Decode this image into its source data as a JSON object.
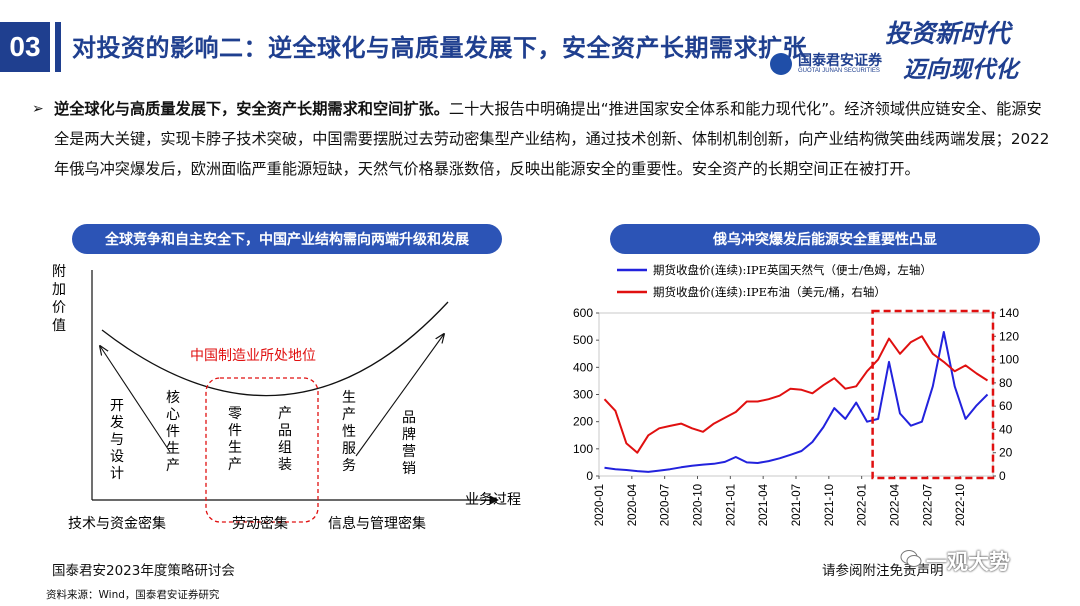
{
  "header": {
    "section_number": "03",
    "title": "对投资的影响二：逆全球化与高质量发展下，安全资产长期需求扩张"
  },
  "brand": {
    "logo_cn": "国泰君安证券",
    "logo_en": "GUOTAI JUNAN SECURITIES",
    "slogan_line1": "投资新时代",
    "slogan_line2": "迈向现代化"
  },
  "bullet": {
    "lead": "逆全球化与高质量发展下，安全资产长期需求和空间扩张。",
    "body": "二十大报告中明确提出“推进国家安全体系和能力现代化”。经济领域供应链安全、能源安全是两大关键，实现卡脖子技术突破，中国需要摆脱过去劳动密集型产业结构，通过技术创新、体制机制创新，向产业结构微笑曲线两端发展；2022年俄乌冲突爆发后，欧洲面临严重能源短缺，天然气价格暴涨数倍，反映出能源安全的重要性。安全资产的长期空间正在被打开。"
  },
  "smile_panel": {
    "pill_title": "全球竞争和自主安全下，中国产业结构需向两端升级和发展",
    "y_axis_label": "附加价值",
    "x_axis_label": "业务过程",
    "curve_label": "中国制造业所处地位",
    "stages": [
      "开发与设计",
      "核心件生产",
      "零件生产",
      "产品组装",
      "生产性服务",
      "品牌营销"
    ],
    "categories": [
      "技术与资金密集",
      "劳动密集",
      "信息与管理密集"
    ]
  },
  "chart_panel": {
    "pill_title": "俄乌冲突爆发后能源安全重要性凸显"
  },
  "chart_data": {
    "type": "line",
    "title": "",
    "x_ticks": [
      "2020-01",
      "2020-04",
      "2020-07",
      "2020-10",
      "2021-01",
      "2021-04",
      "2021-07",
      "2021-10",
      "2022-01",
      "2022-04",
      "2022-07",
      "2022-10"
    ],
    "y_left_ticks": [
      "0",
      "100",
      "200",
      "300",
      "400",
      "500",
      "600"
    ],
    "y_right_ticks": [
      "0",
      "20",
      "40",
      "60",
      "80",
      "100",
      "120",
      "140"
    ],
    "ylim_left": [
      0,
      600
    ],
    "ylim_right": [
      0,
      140
    ],
    "legend_position": "top",
    "highlight_period": [
      "2022-02",
      "2022-12"
    ],
    "series": [
      {
        "name": "期货收盘价(连续):IPE英国天然气（便士/色姆，左轴）",
        "color": "#2222dd",
        "axis": "left",
        "x": [
          "2020-01",
          "2020-02",
          "2020-03",
          "2020-04",
          "2020-05",
          "2020-06",
          "2020-07",
          "2020-08",
          "2020-09",
          "2020-10",
          "2020-11",
          "2020-12",
          "2021-01",
          "2021-02",
          "2021-03",
          "2021-04",
          "2021-05",
          "2021-06",
          "2021-07",
          "2021-08",
          "2021-09",
          "2021-10",
          "2021-11",
          "2021-12",
          "2022-01",
          "2022-02",
          "2022-03",
          "2022-04",
          "2022-05",
          "2022-06",
          "2022-07",
          "2022-08",
          "2022-09",
          "2022-10",
          "2022-11",
          "2022-12"
        ],
        "values": [
          30,
          25,
          22,
          18,
          15,
          20,
          25,
          32,
          38,
          42,
          45,
          52,
          70,
          50,
          48,
          55,
          65,
          78,
          92,
          125,
          180,
          250,
          210,
          270,
          200,
          210,
          420,
          230,
          185,
          200,
          330,
          530,
          330,
          210,
          260,
          300
        ]
      },
      {
        "name": "期货收盘价(连续):IPE布油（美元/桶，右轴）",
        "color": "#e01010",
        "axis": "right",
        "x": [
          "2020-01",
          "2020-02",
          "2020-03",
          "2020-04",
          "2020-05",
          "2020-06",
          "2020-07",
          "2020-08",
          "2020-09",
          "2020-10",
          "2020-11",
          "2020-12",
          "2021-01",
          "2021-02",
          "2021-03",
          "2021-04",
          "2021-05",
          "2021-06",
          "2021-07",
          "2021-08",
          "2021-09",
          "2021-10",
          "2021-11",
          "2021-12",
          "2022-01",
          "2022-02",
          "2022-03",
          "2022-04",
          "2022-05",
          "2022-06",
          "2022-07",
          "2022-08",
          "2022-09",
          "2022-10",
          "2022-11",
          "2022-12"
        ],
        "values": [
          66,
          56,
          28,
          20,
          35,
          41,
          43,
          45,
          41,
          38,
          45,
          50,
          55,
          64,
          64,
          66,
          69,
          75,
          74,
          71,
          78,
          84,
          75,
          77,
          90,
          100,
          118,
          105,
          115,
          120,
          105,
          98,
          90,
          95,
          88,
          82
        ]
      }
    ]
  },
  "footer": {
    "left": "国泰君安2023年度策略研讨会",
    "source": "资料来源：Wind，国泰君安证券研究",
    "right": "请参阅附注免责声明",
    "watermark": "一观大势"
  },
  "colors": {
    "brand_blue": "#1f3f8f",
    "pill_blue": "#2c54b6",
    "annotation_red": "#e01010",
    "gas_blue": "#2222dd"
  }
}
